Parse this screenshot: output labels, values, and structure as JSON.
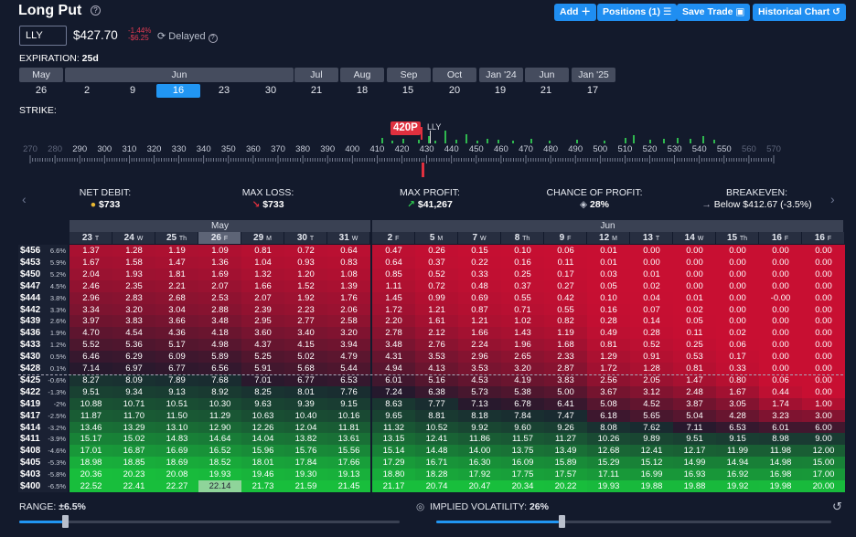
{
  "header": {
    "title": "Long Put",
    "buttons": {
      "add": "Add",
      "positions": "Positions (1)",
      "save_trade": "Save Trade",
      "historical_chart": "Historical Chart"
    }
  },
  "quote": {
    "ticker": "LLY",
    "price": "$427.70",
    "change_pct": "-1.44%",
    "change_abs": "-$6.25",
    "delayed": "Delayed"
  },
  "expiration": {
    "label": "EXPIRATION:",
    "value": "25d",
    "months": [
      "May",
      "Jun",
      "Jul",
      "Aug",
      "Sep",
      "Oct",
      "Jan '24",
      "Jun",
      "Jan '25"
    ],
    "days": [
      "26",
      "2",
      "9",
      "16",
      "23",
      "30",
      "21",
      "18",
      "15",
      "20",
      "19",
      "21",
      "17"
    ],
    "selected_day_index": 3
  },
  "strike": {
    "label": "STRIKE:",
    "ticks": [
      "270",
      "280",
      "290",
      "300",
      "310",
      "320",
      "330",
      "340",
      "350",
      "360",
      "370",
      "380",
      "390",
      "400",
      "410",
      "420",
      "430",
      "440",
      "450",
      "460",
      "470",
      "480",
      "490",
      "500",
      "510",
      "520",
      "530",
      "540",
      "550",
      "560",
      "570"
    ],
    "selected": "420P",
    "underlying_label": "LLY"
  },
  "summary": {
    "net_debit_label": "NET DEBIT:",
    "net_debit_value": "$733",
    "max_loss_label": "MAX LOSS:",
    "max_loss_value": "$733",
    "max_profit_label": "MAX PROFIT:",
    "max_profit_value": "$41,267",
    "chance_label": "CHANCE OF PROFIT:",
    "chance_value": "28%",
    "breakeven_label": "BREAKEVEN:",
    "breakeven_value": "Below $412.67 (-3.5%)"
  },
  "table": {
    "month_headers": [
      "May",
      "Jun"
    ],
    "columns": [
      {
        "d": "23",
        "w": "T"
      },
      {
        "d": "24",
        "w": "W"
      },
      {
        "d": "25",
        "w": "Th"
      },
      {
        "d": "26",
        "w": "F"
      },
      {
        "d": "29",
        "w": "M"
      },
      {
        "d": "30",
        "w": "T"
      },
      {
        "d": "31",
        "w": "W"
      },
      {
        "d": "2",
        "w": "F"
      },
      {
        "d": "5",
        "w": "M"
      },
      {
        "d": "7",
        "w": "W"
      },
      {
        "d": "8",
        "w": "Th"
      },
      {
        "d": "9",
        "w": "F"
      },
      {
        "d": "12",
        "w": "M"
      },
      {
        "d": "13",
        "w": "T"
      },
      {
        "d": "14",
        "w": "W"
      },
      {
        "d": "15",
        "w": "Th"
      },
      {
        "d": "16",
        "w": "F"
      },
      {
        "d": "16",
        "w": "F"
      }
    ],
    "rows": [
      {
        "price": "$456",
        "pct": "6.6%",
        "v": [
          "1.37",
          "1.28",
          "1.19",
          "1.09",
          "0.81",
          "0.72",
          "0.64",
          "0.47",
          "0.26",
          "0.15",
          "0.10",
          "0.06",
          "0.01",
          "0.00",
          "0.00",
          "0.00",
          "0.00",
          "0.00"
        ]
      },
      {
        "price": "$453",
        "pct": "5.9%",
        "v": [
          "1.67",
          "1.58",
          "1.47",
          "1.36",
          "1.04",
          "0.93",
          "0.83",
          "0.64",
          "0.37",
          "0.22",
          "0.16",
          "0.11",
          "0.01",
          "0.00",
          "0.00",
          "0.00",
          "0.00",
          "0.00"
        ]
      },
      {
        "price": "$450",
        "pct": "5.2%",
        "v": [
          "2.04",
          "1.93",
          "1.81",
          "1.69",
          "1.32",
          "1.20",
          "1.08",
          "0.85",
          "0.52",
          "0.33",
          "0.25",
          "0.17",
          "0.03",
          "0.01",
          "0.00",
          "0.00",
          "0.00",
          "0.00"
        ]
      },
      {
        "price": "$447",
        "pct": "4.5%",
        "v": [
          "2.46",
          "2.35",
          "2.21",
          "2.07",
          "1.66",
          "1.52",
          "1.39",
          "1.11",
          "0.72",
          "0.48",
          "0.37",
          "0.27",
          "0.05",
          "0.02",
          "0.00",
          "0.00",
          "0.00",
          "0.00"
        ]
      },
      {
        "price": "$444",
        "pct": "3.8%",
        "v": [
          "2.96",
          "2.83",
          "2.68",
          "2.53",
          "2.07",
          "1.92",
          "1.76",
          "1.45",
          "0.99",
          "0.69",
          "0.55",
          "0.42",
          "0.10",
          "0.04",
          "0.01",
          "0.00",
          "-0.00",
          "0.00"
        ]
      },
      {
        "price": "$442",
        "pct": "3.3%",
        "v": [
          "3.34",
          "3.20",
          "3.04",
          "2.88",
          "2.39",
          "2.23",
          "2.06",
          "1.72",
          "1.21",
          "0.87",
          "0.71",
          "0.55",
          "0.16",
          "0.07",
          "0.02",
          "0.00",
          "0.00",
          "0.00"
        ]
      },
      {
        "price": "$439",
        "pct": "2.6%",
        "v": [
          "3.97",
          "3.83",
          "3.66",
          "3.48",
          "2.95",
          "2.77",
          "2.58",
          "2.20",
          "1.61",
          "1.21",
          "1.02",
          "0.82",
          "0.28",
          "0.14",
          "0.05",
          "0.00",
          "0.00",
          "0.00"
        ]
      },
      {
        "price": "$436",
        "pct": "1.9%",
        "v": [
          "4.70",
          "4.54",
          "4.36",
          "4.18",
          "3.60",
          "3.40",
          "3.20",
          "2.78",
          "2.12",
          "1.66",
          "1.43",
          "1.19",
          "0.49",
          "0.28",
          "0.11",
          "0.02",
          "0.00",
          "0.00"
        ]
      },
      {
        "price": "$433",
        "pct": "1.2%",
        "v": [
          "5.52",
          "5.36",
          "5.17",
          "4.98",
          "4.37",
          "4.15",
          "3.94",
          "3.48",
          "2.76",
          "2.24",
          "1.96",
          "1.68",
          "0.81",
          "0.52",
          "0.25",
          "0.06",
          "0.00",
          "0.00"
        ]
      },
      {
        "price": "$430",
        "pct": "0.5%",
        "v": [
          "6.46",
          "6.29",
          "6.09",
          "5.89",
          "5.25",
          "5.02",
          "4.79",
          "4.31",
          "3.53",
          "2.96",
          "2.65",
          "2.33",
          "1.29",
          "0.91",
          "0.53",
          "0.17",
          "0.00",
          "0.00"
        ]
      },
      {
        "price": "$428",
        "pct": "0.1%",
        "v": [
          "7.14",
          "6.97",
          "6.77",
          "6.56",
          "5.91",
          "5.68",
          "5.44",
          "4.94",
          "4.13",
          "3.53",
          "3.20",
          "2.87",
          "1.72",
          "1.28",
          "0.81",
          "0.33",
          "0.00",
          "0.00"
        ]
      },
      {
        "price": "$425",
        "pct": "-0.6%",
        "v": [
          "8.27",
          "8.09",
          "7.89",
          "7.68",
          "7.01",
          "6.77",
          "6.53",
          "6.01",
          "5.16",
          "4.53",
          "4.19",
          "3.83",
          "2.56",
          "2.05",
          "1.47",
          "0.80",
          "0.06",
          "0.00"
        ]
      },
      {
        "price": "$422",
        "pct": "-1.3%",
        "v": [
          "9.51",
          "9.34",
          "9.13",
          "8.92",
          "8.25",
          "8.01",
          "7.76",
          "7.24",
          "6.38",
          "5.73",
          "5.38",
          "5.00",
          "3.67",
          "3.12",
          "2.48",
          "1.67",
          "0.44",
          "0.00"
        ]
      },
      {
        "price": "$419",
        "pct": "-2%",
        "v": [
          "10.88",
          "10.71",
          "10.51",
          "10.30",
          "9.63",
          "9.39",
          "9.15",
          "8.63",
          "7.77",
          "7.13",
          "6.78",
          "6.41",
          "5.08",
          "4.52",
          "3.87",
          "3.05",
          "1.74",
          "1.00"
        ]
      },
      {
        "price": "$417",
        "pct": "-2.5%",
        "v": [
          "11.87",
          "11.70",
          "11.50",
          "11.29",
          "10.63",
          "10.40",
          "10.16",
          "9.65",
          "8.81",
          "8.18",
          "7.84",
          "7.47",
          "6.18",
          "5.65",
          "5.04",
          "4.28",
          "3.23",
          "3.00"
        ]
      },
      {
        "price": "$414",
        "pct": "-3.2%",
        "v": [
          "13.46",
          "13.29",
          "13.10",
          "12.90",
          "12.26",
          "12.04",
          "11.81",
          "11.32",
          "10.52",
          "9.92",
          "9.60",
          "9.26",
          "8.08",
          "7.62",
          "7.11",
          "6.53",
          "6.01",
          "6.00"
        ]
      },
      {
        "price": "$411",
        "pct": "-3.9%",
        "v": [
          "15.17",
          "15.02",
          "14.83",
          "14.64",
          "14.04",
          "13.82",
          "13.61",
          "13.15",
          "12.41",
          "11.86",
          "11.57",
          "11.27",
          "10.26",
          "9.89",
          "9.51",
          "9.15",
          "8.98",
          "9.00"
        ]
      },
      {
        "price": "$408",
        "pct": "-4.6%",
        "v": [
          "17.01",
          "16.87",
          "16.69",
          "16.52",
          "15.96",
          "15.76",
          "15.56",
          "15.14",
          "14.48",
          "14.00",
          "13.75",
          "13.49",
          "12.68",
          "12.41",
          "12.17",
          "11.99",
          "11.98",
          "12.00"
        ]
      },
      {
        "price": "$405",
        "pct": "-5.3%",
        "v": [
          "18.98",
          "18.85",
          "18.69",
          "18.52",
          "18.01",
          "17.84",
          "17.66",
          "17.29",
          "16.71",
          "16.30",
          "16.09",
          "15.89",
          "15.29",
          "15.12",
          "14.99",
          "14.94",
          "14.98",
          "15.00"
        ]
      },
      {
        "price": "$403",
        "pct": "-5.8%",
        "v": [
          "20.36",
          "20.23",
          "20.08",
          "19.93",
          "19.46",
          "19.30",
          "19.13",
          "18.80",
          "18.28",
          "17.92",
          "17.75",
          "17.57",
          "17.11",
          "16.99",
          "16.93",
          "16.92",
          "16.98",
          "17.00"
        ]
      },
      {
        "price": "$400",
        "pct": "-6.5%",
        "v": [
          "22.52",
          "22.41",
          "22.27",
          "22.14",
          "21.73",
          "21.59",
          "21.45",
          "21.17",
          "20.74",
          "20.47",
          "20.34",
          "20.22",
          "19.93",
          "19.88",
          "19.88",
          "19.92",
          "19.98",
          "20.00"
        ]
      }
    ],
    "cost": 7.33,
    "today_col": 3
  },
  "footer": {
    "range_label": "RANGE:",
    "range_value": "±6.5%",
    "range_fraction": 0.12,
    "iv_label": "IMPLIED VOLATILITY:",
    "iv_value": "26%",
    "iv_fraction": 0.31
  },
  "colors": {
    "accent": "#1f8ef1",
    "loss": "#d0103a",
    "profit": "#1fbf3f",
    "background": "#131a2c"
  }
}
